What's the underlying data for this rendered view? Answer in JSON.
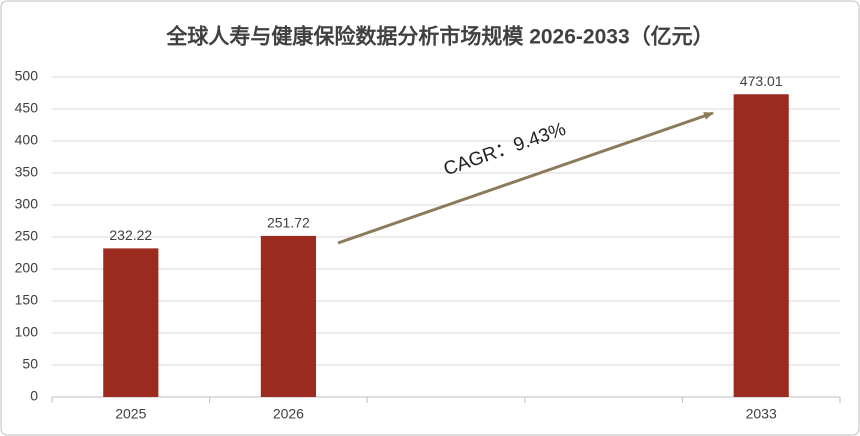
{
  "chart_data": {
    "type": "bar",
    "title": "全球人寿与健康保险数据分析市场规模 2026-2033（亿元）",
    "categories": [
      "2025",
      "2026",
      null,
      null,
      "2033"
    ],
    "values": [
      232.22,
      251.72,
      null,
      null,
      473.01
    ],
    "color": "#9b2b1f",
    "ylim": [
      0,
      500
    ],
    "yticks": [
      0,
      50,
      100,
      150,
      200,
      250,
      300,
      350,
      400,
      450,
      500
    ],
    "grid": true,
    "annotation": "CAGR：9.43%"
  }
}
